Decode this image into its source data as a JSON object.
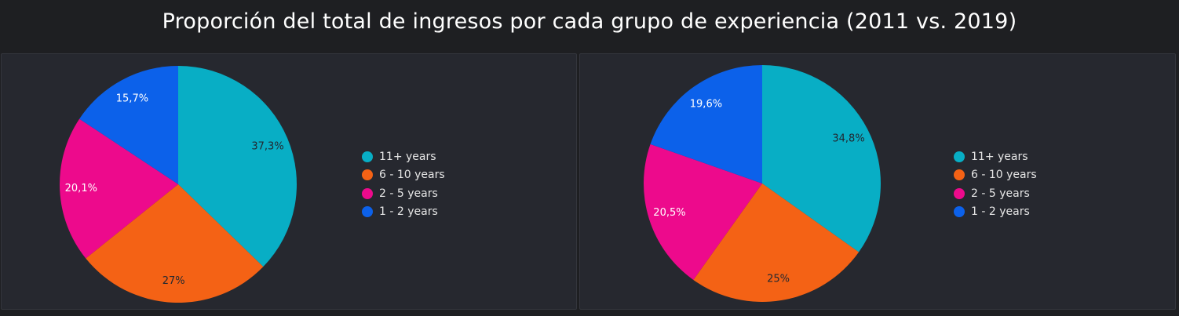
{
  "title": "Proporción del total de ingresos por cada grupo de experiencia (2011 vs. 2019)",
  "colors": {
    "11+ years": "#08aec5",
    "6 - 10 years": "#f46215",
    "2 - 5 years": "#ed0a8c",
    "1 - 2 years": "#0c61ea"
  },
  "chart_data": [
    {
      "type": "pie",
      "categories": [
        "11+ years",
        "6 - 10 years",
        "2 - 5 years",
        "1 - 2 years"
      ],
      "values": [
        37.3,
        27,
        20.1,
        15.7
      ],
      "data_labels": [
        "37,3%",
        "27%",
        "20,1%",
        "15,7%"
      ],
      "legend": [
        "11+ years",
        "6 - 10 years",
        "2 - 5 years",
        "1 - 2 years"
      ],
      "legend_position": "right"
    },
    {
      "type": "pie",
      "categories": [
        "11+ years",
        "6 - 10 years",
        "2 - 5 years",
        "1 - 2 years"
      ],
      "values": [
        34.8,
        25,
        20.5,
        19.6
      ],
      "data_labels": [
        "34,8%",
        "25%",
        "20,5%",
        "19,6%"
      ],
      "legend": [
        "11+ years",
        "6 - 10 years",
        "2 - 5 years",
        "1 - 2 years"
      ],
      "legend_position": "right"
    }
  ]
}
